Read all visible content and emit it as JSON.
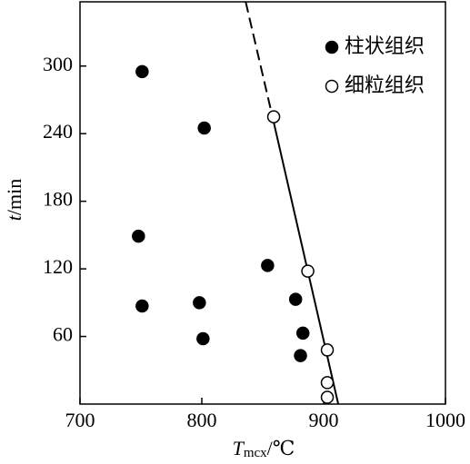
{
  "chart_data": {
    "type": "scatter",
    "xlabel": {
      "symbol": "T",
      "subscript": "mcx",
      "unit": "/℃"
    },
    "ylabel": {
      "symbol": "t",
      "unit": "/min"
    },
    "xlim": [
      700,
      1000
    ],
    "xticks": [
      700,
      800,
      900,
      1000
    ],
    "ylim": [
      0,
      357
    ],
    "yticks": [
      60,
      120,
      180,
      240,
      300
    ],
    "legend": "upper right",
    "series": [
      {
        "name": "柱状组织",
        "color": "#000000",
        "filled": true,
        "x": [
          751,
          802,
          748,
          854,
          751,
          798,
          801,
          877,
          883,
          881
        ],
        "values": [
          295,
          245,
          149,
          123,
          87,
          90,
          58,
          93,
          63,
          43
        ]
      },
      {
        "name": "细粒组织",
        "color": "#000000",
        "filled": false,
        "x": [
          859,
          887,
          903,
          903,
          903
        ],
        "values": [
          255,
          118,
          48,
          19,
          6
        ]
      }
    ],
    "lines": [
      {
        "x": [
          836,
          858
        ],
        "values": [
          357,
          255
        ],
        "style": "dashed",
        "color": "#000000"
      },
      {
        "x": [
          858,
          912
        ],
        "values": [
          255,
          0
        ],
        "style": "solid",
        "color": "#000000"
      }
    ]
  }
}
